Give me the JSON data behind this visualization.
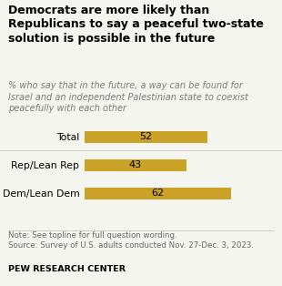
{
  "title": "Democrats are more likely than\nRepublicans to say a peaceful two-state\nsolution is possible in the future",
  "subtitle": "% who say that in the future, a way can be found for\nIsrael and an independent Palestinian state to coexist\npeacefully with each other",
  "categories": [
    "Total",
    "Rep/Lean Rep",
    "Dem/Lean Dem"
  ],
  "values": [
    52,
    43,
    62
  ],
  "bar_color": "#C9A227",
  "bar_positions": [
    2,
    1,
    0
  ],
  "max_value": 100,
  "note_line1": "Note: See topline for full question wording.",
  "note_line2": "Source: Survey of U.S. adults conducted Nov. 27-Dec. 3, 2023.",
  "source_label": "PEW RESEARCH CENTER",
  "background_color": "#f5f5f0",
  "title_fontsize": 9.0,
  "subtitle_fontsize": 7.0,
  "label_fontsize": 7.8,
  "value_fontsize": 8.0,
  "note_fontsize": 6.2,
  "source_fontsize": 6.8
}
